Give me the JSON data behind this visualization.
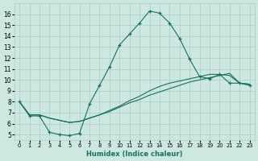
{
  "bg_color": "#cce8e0",
  "line_color": "#1a6e60",
  "grid_color": "#aaccc4",
  "xlabel": "Humidex (Indice chaleur)",
  "xlim": [
    -0.5,
    23.5
  ],
  "ylim": [
    4.5,
    17.0
  ],
  "xticks": [
    0,
    1,
    2,
    3,
    4,
    5,
    6,
    7,
    8,
    9,
    10,
    11,
    12,
    13,
    14,
    15,
    16,
    17,
    18,
    19,
    20,
    21,
    22,
    23
  ],
  "yticks": [
    5,
    6,
    7,
    8,
    9,
    10,
    11,
    12,
    13,
    14,
    15,
    16
  ],
  "line1_x": [
    0,
    1,
    2,
    3,
    4,
    5,
    6,
    7,
    8,
    9,
    10,
    11,
    12,
    13,
    14,
    15,
    16,
    17,
    18,
    19,
    20,
    21,
    22,
    23
  ],
  "line1_y": [
    8.0,
    6.7,
    6.7,
    5.2,
    5.0,
    4.9,
    5.1,
    7.8,
    9.5,
    11.2,
    13.2,
    14.2,
    15.2,
    16.3,
    16.1,
    15.2,
    13.8,
    11.9,
    10.3,
    10.1,
    10.5,
    9.7,
    9.7,
    9.5
  ],
  "line2_x": [
    0,
    1,
    2,
    3,
    4,
    5,
    6,
    7,
    8,
    9,
    10,
    11,
    12,
    13,
    14,
    15,
    16,
    17,
    18,
    19,
    20,
    21,
    22,
    23
  ],
  "line2_y": [
    8.0,
    6.8,
    6.8,
    6.5,
    6.3,
    6.1,
    6.2,
    6.5,
    6.8,
    7.1,
    7.5,
    7.9,
    8.2,
    8.6,
    8.9,
    9.2,
    9.5,
    9.8,
    10.0,
    10.2,
    10.4,
    10.6,
    9.7,
    9.6
  ],
  "line3_x": [
    0,
    1,
    2,
    3,
    4,
    5,
    6,
    7,
    8,
    9,
    10,
    11,
    12,
    13,
    14,
    15,
    16,
    17,
    18,
    19,
    20,
    21,
    22,
    23
  ],
  "line3_y": [
    8.0,
    6.8,
    6.8,
    6.5,
    6.3,
    6.1,
    6.2,
    6.5,
    6.8,
    7.2,
    7.6,
    8.1,
    8.5,
    9.0,
    9.4,
    9.7,
    9.9,
    10.1,
    10.3,
    10.5,
    10.5,
    10.4,
    9.7,
    9.6
  ]
}
